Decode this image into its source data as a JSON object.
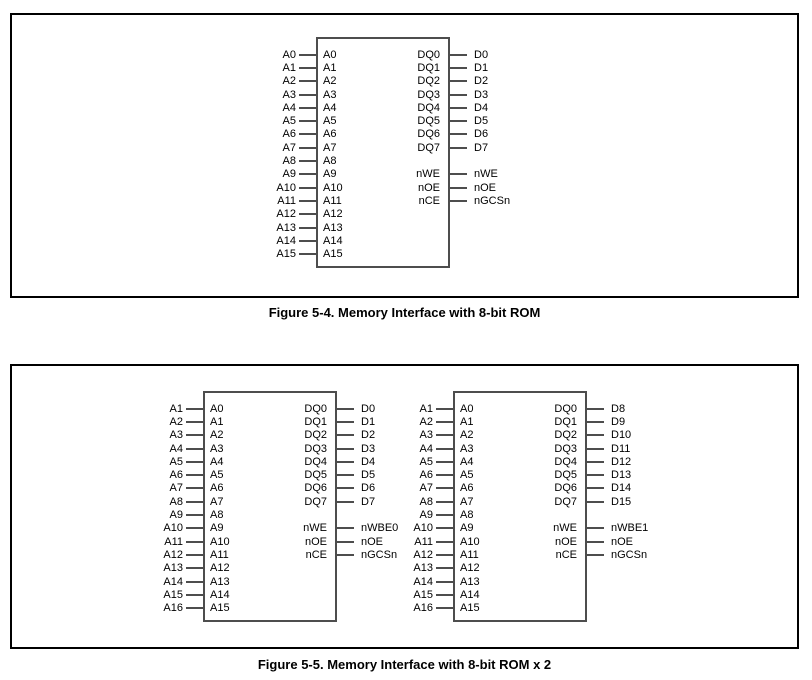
{
  "figures": [
    {
      "caption": "Figure 5-4. Memory Interface with 8-bit ROM",
      "chips": [
        {
          "left_pins": [
            {
              "ext": "A0",
              "int": "A0"
            },
            {
              "ext": "A1",
              "int": "A1"
            },
            {
              "ext": "A2",
              "int": "A2"
            },
            {
              "ext": "A3",
              "int": "A3"
            },
            {
              "ext": "A4",
              "int": "A4"
            },
            {
              "ext": "A5",
              "int": "A5"
            },
            {
              "ext": "A6",
              "int": "A6"
            },
            {
              "ext": "A7",
              "int": "A7"
            },
            {
              "ext": "A8",
              "int": "A8"
            },
            {
              "ext": "A9",
              "int": "A9"
            },
            {
              "ext": "A10",
              "int": "A10"
            },
            {
              "ext": "A11",
              "int": "A11"
            },
            {
              "ext": "A12",
              "int": "A12"
            },
            {
              "ext": "A13",
              "int": "A13"
            },
            {
              "ext": "A14",
              "int": "A14"
            },
            {
              "ext": "A15",
              "int": "A15"
            }
          ],
          "right_pins": [
            {
              "row": 0,
              "int": "DQ0",
              "ext": "D0"
            },
            {
              "row": 1,
              "int": "DQ1",
              "ext": "D1"
            },
            {
              "row": 2,
              "int": "DQ2",
              "ext": "D2"
            },
            {
              "row": 3,
              "int": "DQ3",
              "ext": "D3"
            },
            {
              "row": 4,
              "int": "DQ4",
              "ext": "D4"
            },
            {
              "row": 5,
              "int": "DQ5",
              "ext": "D5"
            },
            {
              "row": 6,
              "int": "DQ6",
              "ext": "D6"
            },
            {
              "row": 7,
              "int": "DQ7",
              "ext": "D7"
            },
            {
              "row": 9,
              "int": "nWE",
              "ext": "nWE"
            },
            {
              "row": 10,
              "int": "nOE",
              "ext": "nOE"
            },
            {
              "row": 11,
              "int": "nCE",
              "ext": "nGCSn"
            }
          ]
        }
      ]
    },
    {
      "caption": "Figure 5-5. Memory Interface with 8-bit ROM x 2",
      "chips": [
        {
          "left_pins": [
            {
              "ext": "A1",
              "int": "A0"
            },
            {
              "ext": "A2",
              "int": "A1"
            },
            {
              "ext": "A3",
              "int": "A2"
            },
            {
              "ext": "A4",
              "int": "A3"
            },
            {
              "ext": "A5",
              "int": "A4"
            },
            {
              "ext": "A6",
              "int": "A5"
            },
            {
              "ext": "A7",
              "int": "A6"
            },
            {
              "ext": "A8",
              "int": "A7"
            },
            {
              "ext": "A9",
              "int": "A8"
            },
            {
              "ext": "A10",
              "int": "A9"
            },
            {
              "ext": "A11",
              "int": "A10"
            },
            {
              "ext": "A12",
              "int": "A11"
            },
            {
              "ext": "A13",
              "int": "A12"
            },
            {
              "ext": "A14",
              "int": "A13"
            },
            {
              "ext": "A15",
              "int": "A14"
            },
            {
              "ext": "A16",
              "int": "A15"
            }
          ],
          "right_pins": [
            {
              "row": 0,
              "int": "DQ0",
              "ext": "D0"
            },
            {
              "row": 1,
              "int": "DQ1",
              "ext": "D1"
            },
            {
              "row": 2,
              "int": "DQ2",
              "ext": "D2"
            },
            {
              "row": 3,
              "int": "DQ3",
              "ext": "D3"
            },
            {
              "row": 4,
              "int": "DQ4",
              "ext": "D4"
            },
            {
              "row": 5,
              "int": "DQ5",
              "ext": "D5"
            },
            {
              "row": 6,
              "int": "DQ6",
              "ext": "D6"
            },
            {
              "row": 7,
              "int": "DQ7",
              "ext": "D7"
            },
            {
              "row": 9,
              "int": "nWE",
              "ext": "nWBE0"
            },
            {
              "row": 10,
              "int": "nOE",
              "ext": "nOE"
            },
            {
              "row": 11,
              "int": "nCE",
              "ext": "nGCSn"
            }
          ]
        },
        {
          "left_pins": [
            {
              "ext": "A1",
              "int": "A0"
            },
            {
              "ext": "A2",
              "int": "A1"
            },
            {
              "ext": "A3",
              "int": "A2"
            },
            {
              "ext": "A4",
              "int": "A3"
            },
            {
              "ext": "A5",
              "int": "A4"
            },
            {
              "ext": "A6",
              "int": "A5"
            },
            {
              "ext": "A7",
              "int": "A6"
            },
            {
              "ext": "A8",
              "int": "A7"
            },
            {
              "ext": "A9",
              "int": "A8"
            },
            {
              "ext": "A10",
              "int": "A9"
            },
            {
              "ext": "A11",
              "int": "A10"
            },
            {
              "ext": "A12",
              "int": "A11"
            },
            {
              "ext": "A13",
              "int": "A12"
            },
            {
              "ext": "A14",
              "int": "A13"
            },
            {
              "ext": "A15",
              "int": "A14"
            },
            {
              "ext": "A16",
              "int": "A15"
            }
          ],
          "right_pins": [
            {
              "row": 0,
              "int": "DQ0",
              "ext": "D8"
            },
            {
              "row": 1,
              "int": "DQ1",
              "ext": "D9"
            },
            {
              "row": 2,
              "int": "DQ2",
              "ext": "D10"
            },
            {
              "row": 3,
              "int": "DQ3",
              "ext": "D11"
            },
            {
              "row": 4,
              "int": "DQ4",
              "ext": "D12"
            },
            {
              "row": 5,
              "int": "DQ5",
              "ext": "D13"
            },
            {
              "row": 6,
              "int": "DQ6",
              "ext": "D14"
            },
            {
              "row": 7,
              "int": "DQ7",
              "ext": "D15"
            },
            {
              "row": 9,
              "int": "nWE",
              "ext": "nWBE1"
            },
            {
              "row": 10,
              "int": "nOE",
              "ext": "nOE"
            },
            {
              "row": 11,
              "int": "nCE",
              "ext": "nGCSn"
            }
          ]
        }
      ]
    }
  ]
}
